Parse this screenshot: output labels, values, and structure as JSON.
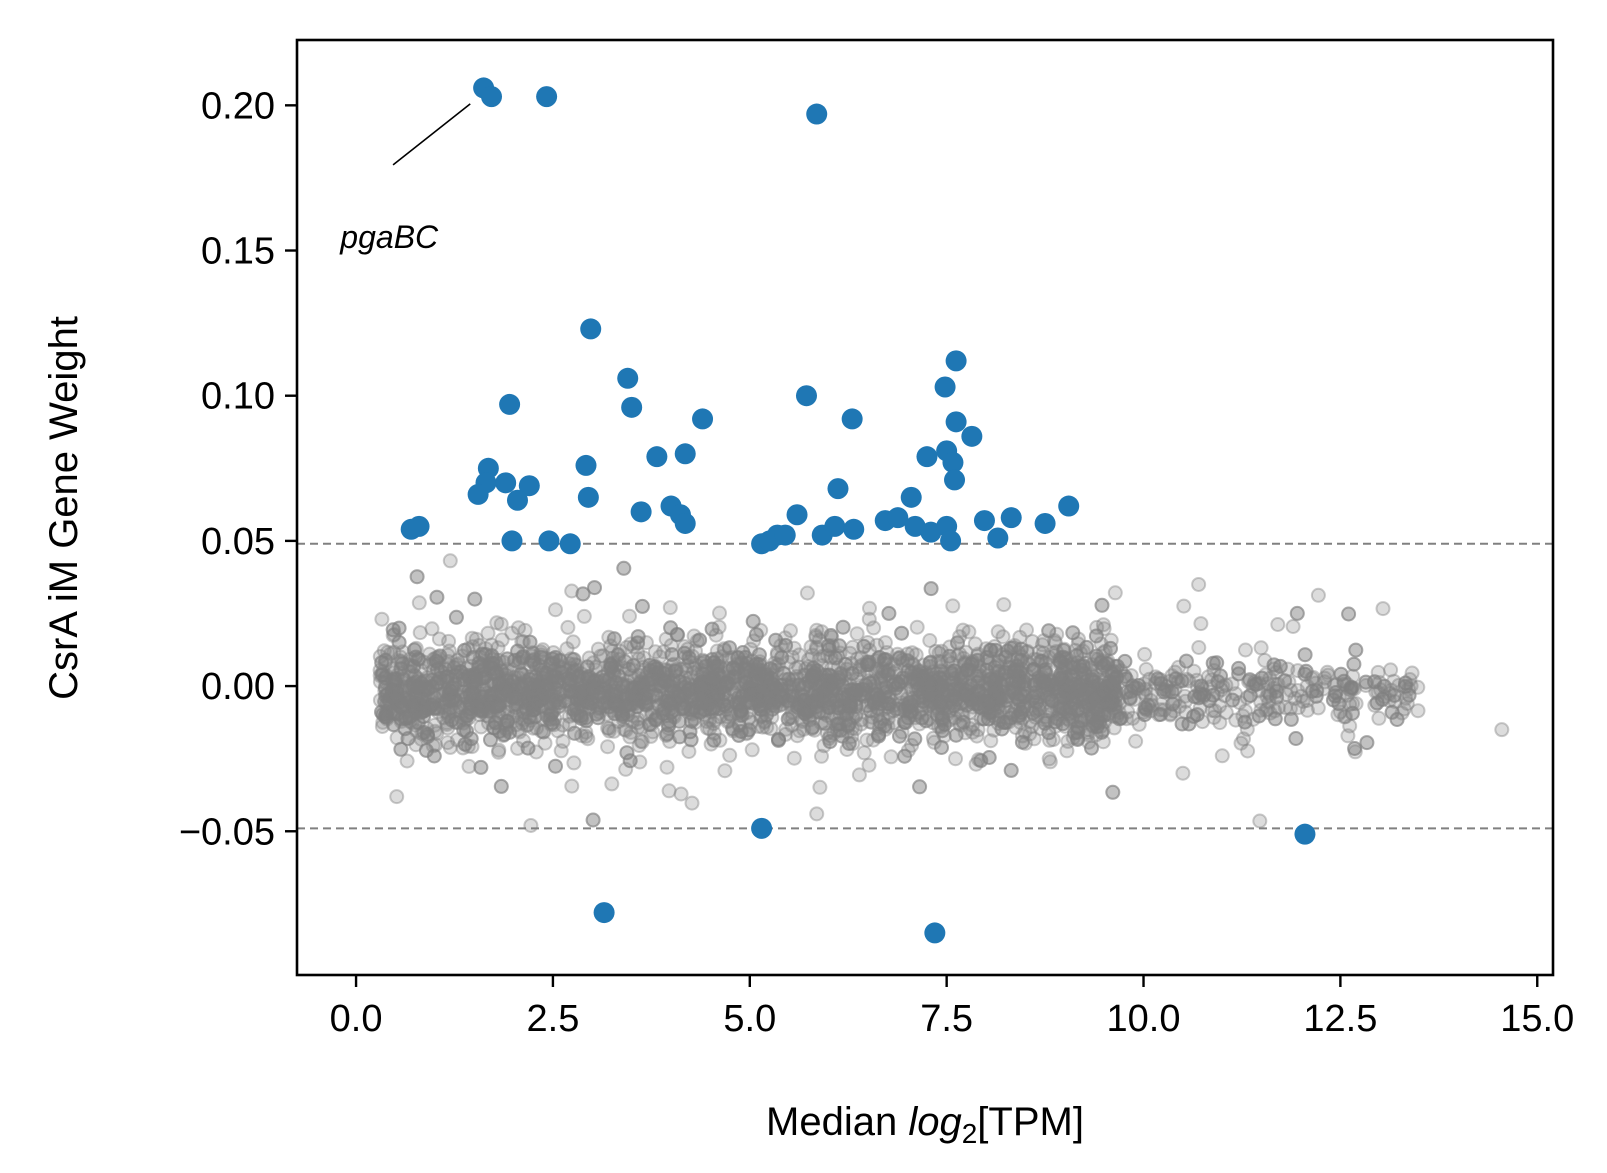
{
  "chart_data": {
    "type": "scatter",
    "title": "",
    "xlabel_prefix": "Median ",
    "xlabel_italic": "log",
    "xlabel_sub": "2",
    "xlabel_suffix": "[TPM]",
    "ylabel": "CsrA iM Gene Weight",
    "xlim": [
      -0.75,
      15.2
    ],
    "ylim": [
      -0.0995,
      0.2225
    ],
    "x_ticks": [
      0.0,
      2.5,
      5.0,
      7.5,
      10.0,
      12.5,
      15.0
    ],
    "x_tick_labels": [
      "0.0",
      "2.5",
      "5.0",
      "7.5",
      "10.0",
      "12.5",
      "15.0"
    ],
    "y_ticks": [
      -0.05,
      0.0,
      0.05,
      0.1,
      0.15,
      0.2
    ],
    "y_tick_labels": [
      "−0.05",
      "0.00",
      "0.05",
      "0.10",
      "0.15",
      "0.20"
    ],
    "thresholds": [
      0.049,
      -0.049
    ],
    "grid": false,
    "colors": {
      "significant": "#1f77b4",
      "background": "#808080",
      "threshold_line": "#808080",
      "axes": "#000000"
    },
    "annotations": [
      {
        "text": "pgaBC",
        "x_point": 1.45,
        "y_point": 0.2025,
        "x_text": -0.2,
        "y_text": 0.155
      }
    ],
    "significant_points": [
      [
        1.62,
        0.206
      ],
      [
        1.72,
        0.203
      ],
      [
        2.42,
        0.203
      ],
      [
        5.85,
        0.197
      ],
      [
        2.98,
        0.123
      ],
      [
        3.45,
        0.106
      ],
      [
        3.5,
        0.096
      ],
      [
        7.62,
        0.112
      ],
      [
        7.48,
        0.103
      ],
      [
        5.72,
        0.1
      ],
      [
        6.3,
        0.092
      ],
      [
        4.4,
        0.092
      ],
      [
        1.95,
        0.097
      ],
      [
        7.62,
        0.091
      ],
      [
        7.82,
        0.086
      ],
      [
        3.82,
        0.079
      ],
      [
        4.18,
        0.08
      ],
      [
        7.25,
        0.079
      ],
      [
        7.5,
        0.081
      ],
      [
        7.58,
        0.077
      ],
      [
        7.6,
        0.071
      ],
      [
        2.92,
        0.076
      ],
      [
        1.68,
        0.075
      ],
      [
        1.65,
        0.07
      ],
      [
        1.9,
        0.07
      ],
      [
        2.2,
        0.069
      ],
      [
        2.05,
        0.064
      ],
      [
        1.55,
        0.066
      ],
      [
        2.95,
        0.065
      ],
      [
        4.0,
        0.062
      ],
      [
        4.12,
        0.059
      ],
      [
        4.18,
        0.056
      ],
      [
        3.62,
        0.06
      ],
      [
        6.12,
        0.068
      ],
      [
        7.05,
        0.065
      ],
      [
        9.05,
        0.062
      ],
      [
        0.7,
        0.054
      ],
      [
        0.8,
        0.055
      ],
      [
        1.98,
        0.05
      ],
      [
        2.45,
        0.05
      ],
      [
        2.72,
        0.049
      ],
      [
        5.15,
        0.049
      ],
      [
        5.25,
        0.05
      ],
      [
        5.35,
        0.052
      ],
      [
        5.45,
        0.052
      ],
      [
        5.6,
        0.059
      ],
      [
        5.92,
        0.052
      ],
      [
        6.08,
        0.055
      ],
      [
        6.32,
        0.054
      ],
      [
        6.72,
        0.057
      ],
      [
        6.88,
        0.058
      ],
      [
        7.1,
        0.055
      ],
      [
        7.3,
        0.053
      ],
      [
        7.5,
        0.055
      ],
      [
        7.55,
        0.05
      ],
      [
        7.98,
        0.057
      ],
      [
        8.15,
        0.051
      ],
      [
        8.32,
        0.058
      ],
      [
        8.75,
        0.056
      ],
      [
        5.15,
        -0.049
      ],
      [
        12.05,
        -0.051
      ],
      [
        3.15,
        -0.078
      ],
      [
        7.35,
        -0.085
      ]
    ],
    "background_points": "approximately 4000 non-significant genes with weights mostly within ±0.048, median log2 TPM from 0 to 14.5"
  }
}
